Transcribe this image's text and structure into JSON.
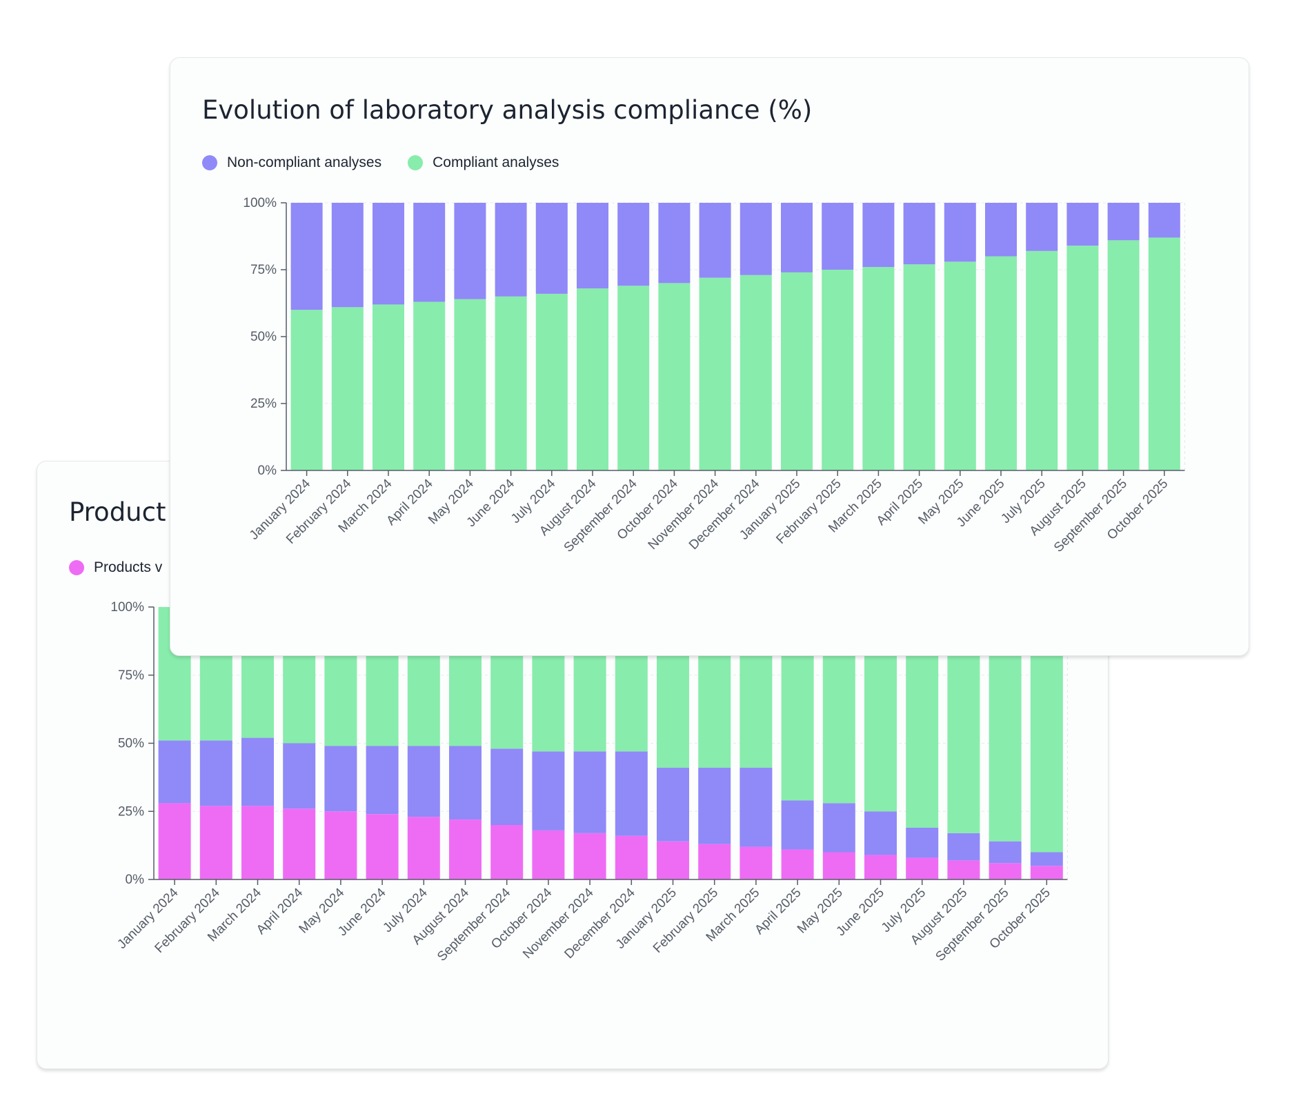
{
  "colors": {
    "compliant": "#88ecac",
    "noncompliant": "#9089f8",
    "magenta": "#ee6cf4"
  },
  "chart_data": [
    {
      "id": "back",
      "type": "bar",
      "stacked": true,
      "title": "Product",
      "legend": [
        {
          "label": "Products v",
          "color": "#ee6cf4"
        }
      ],
      "y_ticks": [
        "0%",
        "25%",
        "50%",
        "75%",
        "100%"
      ],
      "ylim": [
        0,
        100
      ],
      "categories": [
        "January 2024",
        "February 2024",
        "March 2024",
        "April 2024",
        "May 2024",
        "June 2024",
        "July 2024",
        "August 2024",
        "September 2024",
        "October 2024",
        "November 2024",
        "December 2024",
        "January 2025",
        "February 2025",
        "March 2025",
        "April 2025",
        "May 2025",
        "June 2025",
        "July 2025",
        "August 2025",
        "September 2025",
        "October 2025"
      ],
      "series": [
        {
          "name": "Products v",
          "color": "#ee6cf4",
          "values": [
            28,
            27,
            27,
            26,
            25,
            24,
            23,
            22,
            20,
            18,
            17,
            16,
            14,
            13,
            12,
            11,
            10,
            9,
            8,
            7,
            6,
            5
          ]
        },
        {
          "name": "",
          "color": "#9089f8",
          "values": [
            23,
            24,
            25,
            24,
            24,
            25,
            26,
            27,
            28,
            29,
            30,
            31,
            27,
            28,
            29,
            18,
            18,
            16,
            11,
            10,
            8,
            5
          ]
        },
        {
          "name": "",
          "color": "#88ecac",
          "values": [
            49,
            49,
            48,
            50,
            51,
            51,
            51,
            51,
            52,
            53,
            53,
            53,
            59,
            59,
            59,
            71,
            72,
            75,
            81,
            83,
            86,
            90
          ]
        }
      ]
    },
    {
      "id": "front",
      "type": "bar",
      "stacked": true,
      "title": "Evolution of laboratory analysis compliance (%)",
      "legend": [
        {
          "label": "Non-compliant analyses",
          "color": "#9089f8"
        },
        {
          "label": "Compliant analyses",
          "color": "#88ecac"
        }
      ],
      "y_ticks": [
        "0%",
        "25%",
        "50%",
        "75%",
        "100%"
      ],
      "ylim": [
        0,
        100
      ],
      "categories": [
        "January 2024",
        "February 2024",
        "March 2024",
        "April 2024",
        "May 2024",
        "June 2024",
        "July 2024",
        "August 2024",
        "September 2024",
        "October 2024",
        "November 2024",
        "December 2024",
        "January 2025",
        "February 2025",
        "March 2025",
        "April 2025",
        "May 2025",
        "June 2025",
        "July 2025",
        "August 2025",
        "September 2025",
        "October 2025"
      ],
      "series": [
        {
          "name": "Compliant analyses",
          "color": "#88ecac",
          "values": [
            60,
            61,
            62,
            63,
            64,
            65,
            66,
            68,
            69,
            70,
            72,
            73,
            74,
            75,
            76,
            77,
            78,
            80,
            82,
            84,
            86,
            87
          ]
        },
        {
          "name": "Non-compliant analyses",
          "color": "#9089f8",
          "values": [
            40,
            39,
            38,
            37,
            36,
            35,
            34,
            32,
            31,
            30,
            28,
            27,
            26,
            25,
            24,
            23,
            22,
            20,
            18,
            16,
            14,
            13
          ]
        }
      ]
    }
  ]
}
